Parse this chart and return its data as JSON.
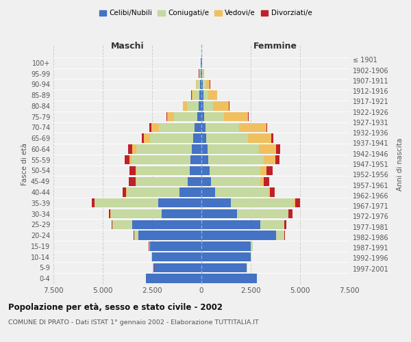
{
  "age_groups": [
    "0-4",
    "5-9",
    "10-14",
    "15-19",
    "20-24",
    "25-29",
    "30-34",
    "35-39",
    "40-44",
    "45-49",
    "50-54",
    "55-59",
    "60-64",
    "65-69",
    "70-74",
    "75-79",
    "80-84",
    "85-89",
    "90-94",
    "95-99",
    "100+"
  ],
  "birth_years": [
    "1997-2001",
    "1992-1996",
    "1987-1991",
    "1982-1986",
    "1977-1981",
    "1972-1976",
    "1967-1971",
    "1962-1966",
    "1957-1961",
    "1952-1956",
    "1947-1951",
    "1942-1946",
    "1937-1941",
    "1932-1936",
    "1927-1931",
    "1922-1926",
    "1917-1921",
    "1912-1916",
    "1907-1911",
    "1902-1906",
    "≤ 1901"
  ],
  "male": {
    "celibi": [
      2800,
      2400,
      2500,
      2600,
      3200,
      3500,
      2000,
      2200,
      1100,
      700,
      600,
      550,
      500,
      400,
      350,
      200,
      130,
      100,
      80,
      50,
      20
    ],
    "coniugati": [
      5,
      10,
      30,
      50,
      200,
      1000,
      2600,
      3200,
      2700,
      2600,
      2700,
      3000,
      2800,
      2200,
      1800,
      1200,
      600,
      300,
      150,
      50,
      20
    ],
    "vedovi": [
      1,
      1,
      1,
      1,
      2,
      2,
      3,
      5,
      10,
      30,
      50,
      100,
      200,
      300,
      400,
      350,
      200,
      100,
      50,
      20,
      5
    ],
    "divorziati": [
      2,
      3,
      5,
      10,
      20,
      50,
      100,
      150,
      200,
      350,
      300,
      250,
      200,
      120,
      80,
      30,
      20,
      15,
      10,
      5,
      2
    ]
  },
  "female": {
    "nubili": [
      2800,
      2300,
      2500,
      2500,
      3800,
      3000,
      1800,
      1500,
      700,
      500,
      400,
      350,
      300,
      250,
      200,
      150,
      100,
      100,
      80,
      50,
      20
    ],
    "coniugate": [
      5,
      10,
      30,
      100,
      400,
      1200,
      2600,
      3200,
      2700,
      2500,
      2600,
      2800,
      2600,
      2100,
      1700,
      1000,
      500,
      250,
      150,
      50,
      20
    ],
    "vedove": [
      1,
      1,
      2,
      3,
      5,
      10,
      20,
      40,
      80,
      150,
      300,
      600,
      900,
      1200,
      1400,
      1200,
      800,
      450,
      200,
      50,
      5
    ],
    "divorziate": [
      2,
      3,
      5,
      10,
      30,
      100,
      200,
      250,
      250,
      300,
      300,
      200,
      200,
      100,
      50,
      30,
      20,
      15,
      10,
      5,
      2
    ]
  },
  "colors": {
    "celibi": "#4472c4",
    "coniugati": "#c5d9a0",
    "vedovi": "#f0c060",
    "divorziati": "#c0202a"
  },
  "title": "Popolazione per età, sesso e stato civile - 2002",
  "subtitle": "COMUNE DI PRATO - Dati ISTAT 1° gennaio 2002 - Elaborazione TUTTITALIA.IT",
  "xlabel_left": "Maschi",
  "xlabel_right": "Femmine",
  "ylabel_left": "Fasce di età",
  "ylabel_right": "Anni di nascita",
  "xlim": 7500,
  "legend_labels": [
    "Celibi/Nubili",
    "Coniugati/e",
    "Vedovi/e",
    "Divorziati/e"
  ],
  "background_color": "#f0f0f0"
}
